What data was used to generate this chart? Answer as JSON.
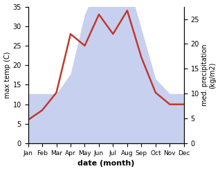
{
  "months": [
    "Jan",
    "Feb",
    "Mar",
    "Apr",
    "May",
    "Jun",
    "Jul",
    "Aug",
    "Sep",
    "Oct",
    "Nov",
    "Dec"
  ],
  "month_x": [
    1,
    2,
    3,
    4,
    5,
    6,
    7,
    8,
    9,
    10,
    11,
    12
  ],
  "temperature": [
    6,
    8.5,
    13,
    28,
    25,
    33,
    28,
    34,
    22,
    13,
    10,
    10
  ],
  "precipitation": [
    10,
    10,
    10,
    14,
    26,
    32,
    28,
    33,
    23,
    13,
    10,
    10
  ],
  "temp_color": "#c0392b",
  "precip_fill_color": "#c8d0f0",
  "ylim_temp": [
    0,
    35
  ],
  "ylim_precip": [
    0,
    27.5
  ],
  "ylabel_left": "max temp (C)",
  "ylabel_right": "med. precipitation\n(kg/m2)",
  "xlabel": "date (month)",
  "temp_linewidth": 1.8,
  "bg_color": "#ffffff",
  "yticks_left": [
    0,
    5,
    10,
    15,
    20,
    25,
    30,
    35
  ],
  "yticks_right": [
    0,
    5,
    10,
    15,
    20,
    25
  ],
  "precip_scale": 0.786
}
